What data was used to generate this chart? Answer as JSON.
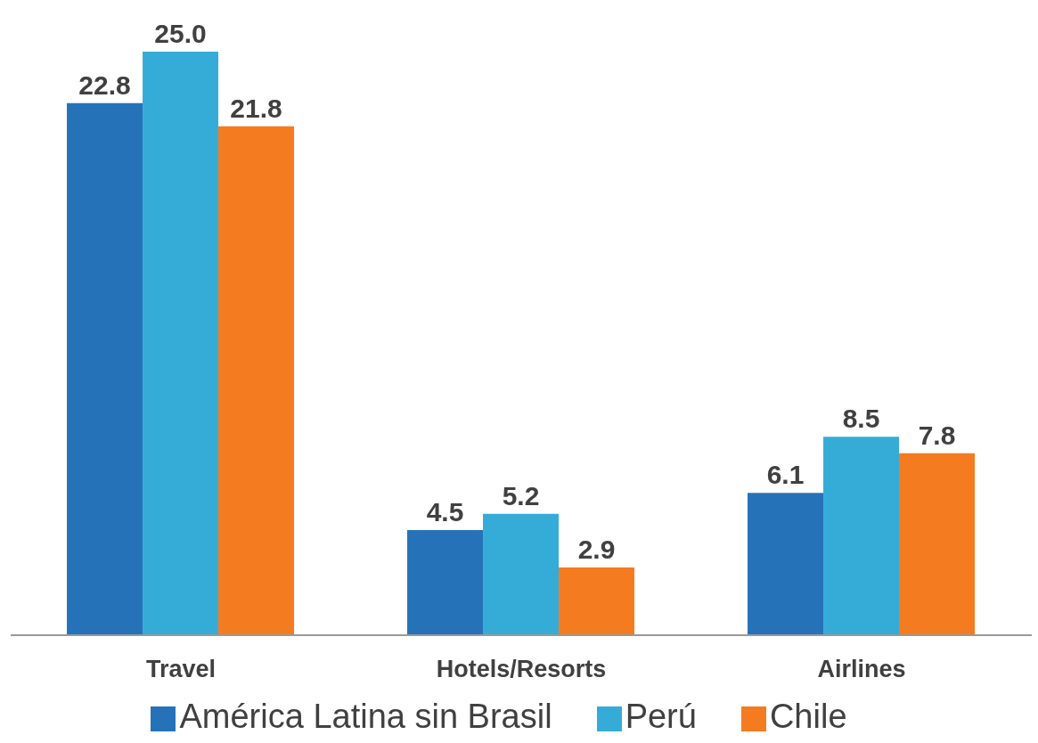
{
  "chart_data": {
    "type": "bar",
    "categories": [
      "Travel",
      "Hotels/Resorts",
      "Airlines"
    ],
    "series": [
      {
        "name": "América Latina sin Brasil",
        "color": "#2672b8",
        "values": [
          22.8,
          4.5,
          6.1
        ],
        "value_labels": [
          "22.8",
          "4.5",
          "6.1"
        ]
      },
      {
        "name": "Perú",
        "color": "#35acd8",
        "values": [
          25.0,
          5.2,
          8.5
        ],
        "value_labels": [
          "25.0",
          "5.2",
          "8.5"
        ]
      },
      {
        "name": "Chile",
        "color": "#f47b20",
        "values": [
          21.8,
          2.9,
          7.8
        ],
        "value_labels": [
          "21.8",
          "2.9",
          "7.8"
        ]
      }
    ],
    "legend": "bottom",
    "tick_labels": "x"
  }
}
